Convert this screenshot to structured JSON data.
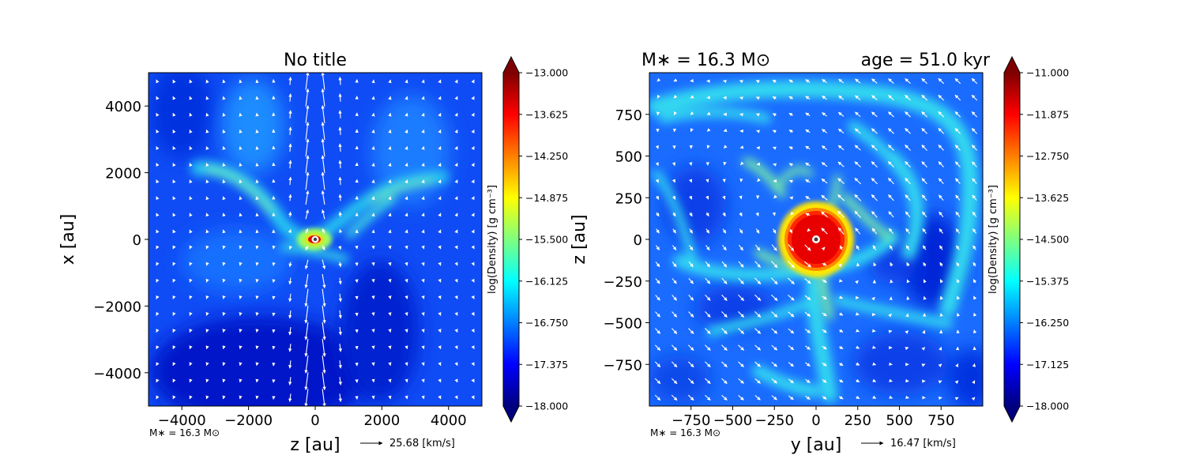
{
  "colors": {
    "jet": [
      "#00007f",
      "#0000ff",
      "#007fff",
      "#00ffff",
      "#7fff7f",
      "#ffff00",
      "#ff7f00",
      "#ff0000",
      "#7f0000"
    ],
    "arrow": "#ffffff",
    "background_low": "#0a3cf0"
  },
  "chart_data": [
    {
      "type": "heatmap",
      "title": "No title",
      "xlabel": "z [au]",
      "ylabel": "x [au]",
      "xlim": [
        -5000,
        5000
      ],
      "ylim": [
        -5000,
        5000
      ],
      "xticks": [
        -4000,
        -2000,
        0,
        2000,
        4000
      ],
      "yticks": [
        -4000,
        -2000,
        0,
        2000,
        4000
      ],
      "xtick_labels": [
        "−4000",
        "−2000",
        "0",
        "2000",
        "4000"
      ],
      "ytick_labels": [
        "−4000",
        "−2000",
        "0",
        "2000",
        "4000"
      ],
      "footnote": "M∗ = 16.3 M⊙",
      "quiver_key": "25.68 [km/s]",
      "colorbar": {
        "label": "log(Density) [g cm⁻³]",
        "range": [
          -18.0,
          -13.0
        ],
        "ticks": [
          -13.0,
          -13.625,
          -14.25,
          -14.875,
          -15.5,
          -16.125,
          -16.75,
          -17.375,
          -18.0
        ],
        "tick_labels": [
          "−13.000",
          "−13.625",
          "−14.250",
          "−14.875",
          "−15.500",
          "−16.125",
          "−16.750",
          "−17.375",
          "−18.000"
        ]
      }
    },
    {
      "type": "heatmap",
      "title_left": "M∗ = 16.3 M⊙",
      "title_right": "age = 51.0 kyr",
      "xlabel": "y [au]",
      "ylabel": "z [au]",
      "xlim": [
        -1000,
        1000
      ],
      "ylim": [
        -1000,
        1000
      ],
      "xticks": [
        -750,
        -500,
        -250,
        0,
        250,
        500,
        750
      ],
      "yticks": [
        -750,
        -500,
        -250,
        0,
        250,
        500,
        750
      ],
      "xtick_labels": [
        "−750",
        "−500",
        "−250",
        "0",
        "250",
        "500",
        "750"
      ],
      "ytick_labels": [
        "−750",
        "−500",
        "−250",
        "0",
        "250",
        "500",
        "750"
      ],
      "footnote": "M∗ = 16.3 M⊙",
      "quiver_key": "16.47 [km/s]",
      "colorbar": {
        "label": "log(Density) [g cm⁻³]",
        "range": [
          -18.0,
          -11.0
        ],
        "ticks": [
          -11.0,
          -11.875,
          -12.75,
          -13.625,
          -14.5,
          -15.375,
          -16.25,
          -17.125,
          -18.0
        ],
        "tick_labels": [
          "−11.000",
          "−11.875",
          "−12.750",
          "−13.625",
          "−14.500",
          "−15.375",
          "−16.250",
          "−17.125",
          "−18.000"
        ]
      }
    }
  ]
}
